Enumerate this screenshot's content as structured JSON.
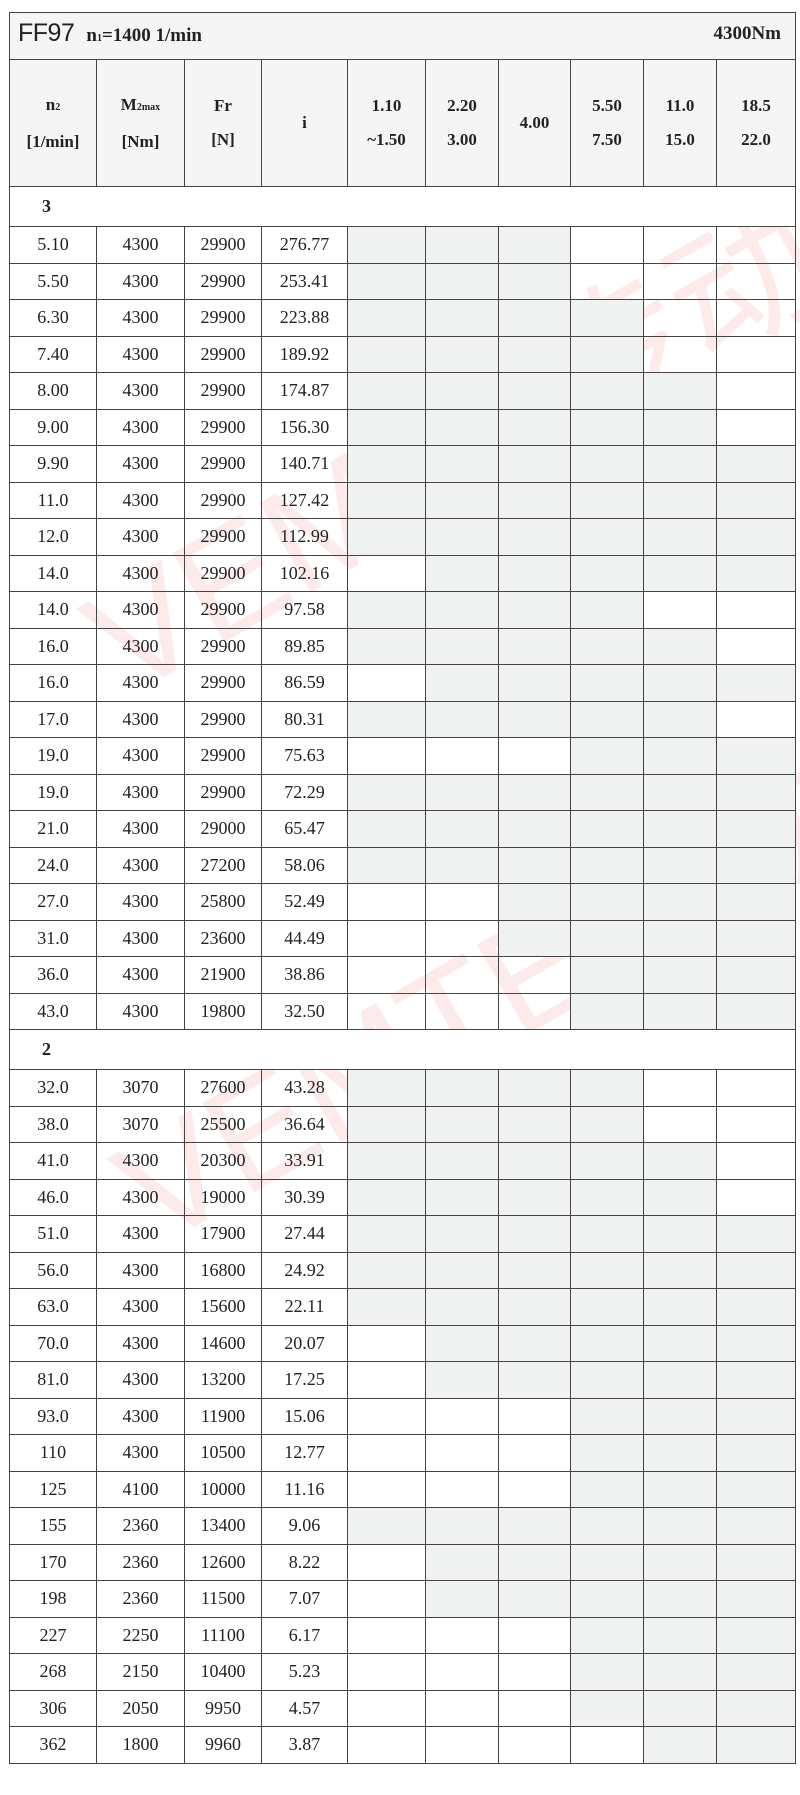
{
  "title": {
    "model": "FF97",
    "n1_label": "n",
    "n1_sub": "1",
    "n1_value": "=1400 1/min",
    "torque": "4300Nm"
  },
  "headers": {
    "n2": {
      "main": "n",
      "sub": "2",
      "unit": "[1/min]"
    },
    "m2": {
      "main": "M",
      "sub": "2max",
      "unit": "[Nm]"
    },
    "fr": {
      "main": "Fr",
      "unit": "[N]"
    },
    "i": {
      "main": "i"
    },
    "power": [
      {
        "line1": "1.10",
        "line2": "~1.50"
      },
      {
        "line1": "2.20",
        "line2": "3.00"
      },
      {
        "line1": "4.00",
        "line2": ""
      },
      {
        "line1": "5.50",
        "line2": "7.50"
      },
      {
        "line1": "11.0",
        "line2": "15.0"
      },
      {
        "line1": "18.5",
        "line2": "22.0"
      }
    ]
  },
  "colors": {
    "shaded": "#f0f1f1",
    "border": "#444444",
    "watermark": "#f03c3c"
  },
  "watermark": "VEMTE传动",
  "sections": [
    {
      "label": "3",
      "rows": [
        {
          "n2": "5.10",
          "m2": "4300",
          "fr": "29900",
          "i": "276.77",
          "avail": [
            1,
            1,
            1,
            0,
            0,
            0
          ]
        },
        {
          "n2": "5.50",
          "m2": "4300",
          "fr": "29900",
          "i": "253.41",
          "avail": [
            1,
            1,
            1,
            0,
            0,
            0
          ]
        },
        {
          "n2": "6.30",
          "m2": "4300",
          "fr": "29900",
          "i": "223.88",
          "avail": [
            1,
            1,
            1,
            1,
            0,
            0
          ]
        },
        {
          "n2": "7.40",
          "m2": "4300",
          "fr": "29900",
          "i": "189.92",
          "avail": [
            1,
            1,
            1,
            1,
            0,
            0
          ]
        },
        {
          "n2": "8.00",
          "m2": "4300",
          "fr": "29900",
          "i": "174.87",
          "avail": [
            1,
            1,
            1,
            1,
            1,
            0
          ]
        },
        {
          "n2": "9.00",
          "m2": "4300",
          "fr": "29900",
          "i": "156.30",
          "avail": [
            1,
            1,
            1,
            1,
            1,
            0
          ]
        },
        {
          "n2": "9.90",
          "m2": "4300",
          "fr": "29900",
          "i": "140.71",
          "avail": [
            1,
            1,
            1,
            1,
            1,
            1
          ]
        },
        {
          "n2": "11.0",
          "m2": "4300",
          "fr": "29900",
          "i": "127.42",
          "avail": [
            1,
            1,
            1,
            1,
            1,
            1
          ]
        },
        {
          "n2": "12.0",
          "m2": "4300",
          "fr": "29900",
          "i": "112.99",
          "avail": [
            1,
            1,
            1,
            1,
            1,
            1
          ]
        },
        {
          "n2": "14.0",
          "m2": "4300",
          "fr": "29900",
          "i": "102.16",
          "avail": [
            0,
            1,
            1,
            1,
            1,
            1
          ]
        },
        {
          "n2": "14.0",
          "m2": "4300",
          "fr": "29900",
          "i": "97.58",
          "avail": [
            1,
            1,
            1,
            1,
            0,
            0
          ]
        },
        {
          "n2": "16.0",
          "m2": "4300",
          "fr": "29900",
          "i": "89.85",
          "avail": [
            1,
            1,
            1,
            1,
            1,
            0
          ]
        },
        {
          "n2": "16.0",
          "m2": "4300",
          "fr": "29900",
          "i": "86.59",
          "avail": [
            0,
            1,
            1,
            1,
            1,
            1
          ]
        },
        {
          "n2": "17.0",
          "m2": "4300",
          "fr": "29900",
          "i": "80.31",
          "avail": [
            1,
            1,
            1,
            1,
            1,
            0
          ]
        },
        {
          "n2": "19.0",
          "m2": "4300",
          "fr": "29900",
          "i": "75.63",
          "avail": [
            0,
            0,
            0,
            1,
            1,
            1
          ]
        },
        {
          "n2": "19.0",
          "m2": "4300",
          "fr": "29900",
          "i": "72.29",
          "avail": [
            1,
            1,
            1,
            1,
            1,
            1
          ]
        },
        {
          "n2": "21.0",
          "m2": "4300",
          "fr": "29000",
          "i": "65.47",
          "avail": [
            1,
            1,
            1,
            1,
            1,
            1
          ]
        },
        {
          "n2": "24.0",
          "m2": "4300",
          "fr": "27200",
          "i": "58.06",
          "avail": [
            1,
            1,
            1,
            1,
            1,
            1
          ]
        },
        {
          "n2": "27.0",
          "m2": "4300",
          "fr": "25800",
          "i": "52.49",
          "avail": [
            0,
            0,
            1,
            1,
            1,
            1
          ]
        },
        {
          "n2": "31.0",
          "m2": "4300",
          "fr": "23600",
          "i": "44.49",
          "avail": [
            0,
            0,
            1,
            1,
            1,
            1
          ]
        },
        {
          "n2": "36.0",
          "m2": "4300",
          "fr": "21900",
          "i": "38.86",
          "avail": [
            0,
            0,
            0,
            1,
            1,
            1
          ]
        },
        {
          "n2": "43.0",
          "m2": "4300",
          "fr": "19800",
          "i": "32.50",
          "avail": [
            0,
            0,
            0,
            1,
            1,
            1
          ]
        }
      ]
    },
    {
      "label": "2",
      "rows": [
        {
          "n2": "32.0",
          "m2": "3070",
          "fr": "27600",
          "i": "43.28",
          "avail": [
            1,
            1,
            1,
            1,
            0,
            0
          ]
        },
        {
          "n2": "38.0",
          "m2": "3070",
          "fr": "25500",
          "i": "36.64",
          "avail": [
            1,
            1,
            1,
            1,
            0,
            0
          ]
        },
        {
          "n2": "41.0",
          "m2": "4300",
          "fr": "20300",
          "i": "33.91",
          "avail": [
            1,
            1,
            1,
            1,
            1,
            0
          ]
        },
        {
          "n2": "46.0",
          "m2": "4300",
          "fr": "19000",
          "i": "30.39",
          "avail": [
            1,
            1,
            1,
            1,
            1,
            0
          ]
        },
        {
          "n2": "51.0",
          "m2": "4300",
          "fr": "17900",
          "i": "27.44",
          "avail": [
            1,
            1,
            1,
            1,
            1,
            1
          ]
        },
        {
          "n2": "56.0",
          "m2": "4300",
          "fr": "16800",
          "i": "24.92",
          "avail": [
            1,
            1,
            1,
            1,
            1,
            1
          ]
        },
        {
          "n2": "63.0",
          "m2": "4300",
          "fr": "15600",
          "i": "22.11",
          "avail": [
            1,
            1,
            1,
            1,
            1,
            1
          ]
        },
        {
          "n2": "70.0",
          "m2": "4300",
          "fr": "14600",
          "i": "20.07",
          "avail": [
            0,
            1,
            1,
            1,
            1,
            1
          ]
        },
        {
          "n2": "81.0",
          "m2": "4300",
          "fr": "13200",
          "i": "17.25",
          "avail": [
            0,
            1,
            1,
            1,
            1,
            1
          ]
        },
        {
          "n2": "93.0",
          "m2": "4300",
          "fr": "11900",
          "i": "15.06",
          "avail": [
            0,
            0,
            0,
            1,
            1,
            1
          ]
        },
        {
          "n2": "110",
          "m2": "4300",
          "fr": "10500",
          "i": "12.77",
          "avail": [
            0,
            0,
            0,
            1,
            1,
            1
          ]
        },
        {
          "n2": "125",
          "m2": "4100",
          "fr": "10000",
          "i": "11.16",
          "avail": [
            0,
            0,
            0,
            1,
            1,
            1
          ]
        },
        {
          "n2": "155",
          "m2": "2360",
          "fr": "13400",
          "i": "9.06",
          "avail": [
            1,
            1,
            1,
            1,
            1,
            1
          ]
        },
        {
          "n2": "170",
          "m2": "2360",
          "fr": "12600",
          "i": "8.22",
          "avail": [
            0,
            1,
            1,
            1,
            1,
            1
          ]
        },
        {
          "n2": "198",
          "m2": "2360",
          "fr": "11500",
          "i": "7.07",
          "avail": [
            0,
            1,
            1,
            1,
            1,
            1
          ]
        },
        {
          "n2": "227",
          "m2": "2250",
          "fr": "11100",
          "i": "6.17",
          "avail": [
            0,
            0,
            0,
            1,
            1,
            1
          ]
        },
        {
          "n2": "268",
          "m2": "2150",
          "fr": "10400",
          "i": "5.23",
          "avail": [
            0,
            0,
            0,
            1,
            1,
            1
          ]
        },
        {
          "n2": "306",
          "m2": "2050",
          "fr": "9950",
          "i": "4.57",
          "avail": [
            0,
            0,
            0,
            1,
            1,
            1
          ]
        },
        {
          "n2": "362",
          "m2": "1800",
          "fr": "9960",
          "i": "3.87",
          "avail": [
            0,
            0,
            0,
            0,
            1,
            1
          ]
        }
      ]
    }
  ]
}
